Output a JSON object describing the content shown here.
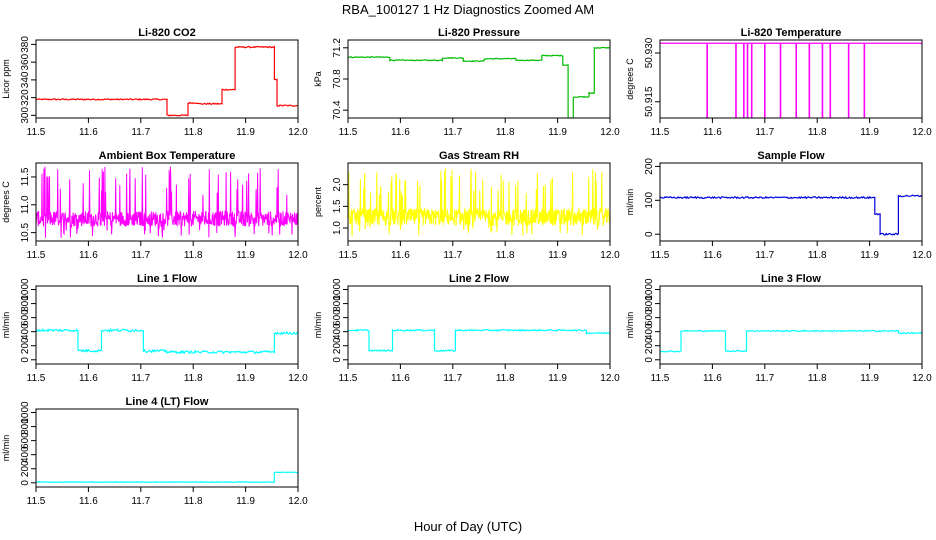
{
  "figure": {
    "main_title": "RBA_100127  1 Hz Diagnostics Zoomed AM",
    "xlabel": "Hour of Day (UTC)"
  },
  "chart_data": [
    {
      "type": "line",
      "title": "Li-820 CO2",
      "ylabel": "Licor ppm",
      "color": "#ff0000",
      "xlim": [
        11.5,
        12.0
      ],
      "xticks": [
        11.5,
        11.6,
        11.7,
        11.8,
        11.9,
        12.0
      ],
      "ylim": [
        297,
        385
      ],
      "yticks": [
        300,
        320,
        340,
        360,
        380
      ],
      "series": [
        {
          "x": [
            11.5,
            11.75,
            11.75,
            11.79,
            11.79,
            11.81,
            11.81,
            11.855,
            11.855,
            11.88,
            11.88,
            11.955,
            11.955,
            11.96,
            11.96,
            12.0
          ],
          "y": [
            318,
            318,
            300,
            300,
            314,
            314,
            313,
            313,
            329,
            329,
            377,
            377,
            340,
            340,
            311,
            311
          ],
          "noise": 0.7
        }
      ]
    },
    {
      "type": "line",
      "title": "Li-820 Pressure",
      "ylabel": "kPa",
      "color": "#00bb00",
      "xlim": [
        11.5,
        12.0
      ],
      "xticks": [
        11.5,
        11.6,
        11.7,
        11.8,
        11.9,
        12.0
      ],
      "ylim": [
        70.3,
        71.3
      ],
      "yticks": [
        70.4,
        70.8,
        71.2
      ],
      "series": [
        {
          "x": [
            11.5,
            11.58,
            11.58,
            11.68,
            11.68,
            11.72,
            11.72,
            11.76,
            11.76,
            11.82,
            11.82,
            11.87,
            11.87,
            11.91,
            11.91,
            11.92,
            11.92,
            11.93,
            11.93,
            11.96,
            11.96,
            11.97,
            11.97,
            12.0
          ],
          "y": [
            71.08,
            71.08,
            71.04,
            71.04,
            71.07,
            71.07,
            71.03,
            71.03,
            71.06,
            71.06,
            71.04,
            71.04,
            71.1,
            71.1,
            70.98,
            70.98,
            70.3,
            70.3,
            70.57,
            70.57,
            70.62,
            70.62,
            71.2,
            71.2
          ],
          "noise": 0.006
        }
      ]
    },
    {
      "type": "line",
      "title": "Li-820 Temperature",
      "ylabel": "degrees C",
      "color": "#ff00ff",
      "xlim": [
        11.5,
        12.0
      ],
      "xticks": [
        11.5,
        11.6,
        11.7,
        11.8,
        11.9,
        12.0
      ],
      "ylim": [
        50.91,
        50.934
      ],
      "yticks": [
        50.915,
        50.93
      ],
      "base": 50.933,
      "spikes": [
        11.59,
        11.645,
        11.66,
        11.667,
        11.675,
        11.7,
        11.73,
        11.76,
        11.785,
        11.81,
        11.825,
        11.86,
        11.89
      ],
      "spike_low": 50.91
    },
    {
      "type": "line",
      "title": "Ambient Box Temperature",
      "ylabel": "degrees C",
      "color": "#ff00ff",
      "xlim": [
        11.5,
        12.0
      ],
      "xticks": [
        11.5,
        11.6,
        11.7,
        11.8,
        11.9,
        12.0
      ],
      "ylim": [
        10.35,
        11.75
      ],
      "yticks": [
        10.5,
        11.0,
        11.5
      ],
      "noise_band": {
        "center": 10.75,
        "spread": 0.14,
        "spike_high": 11.7,
        "spike_low": 10.4
      }
    },
    {
      "type": "line",
      "title": "Gas Stream RH",
      "ylabel": "percent",
      "color": "#ffff00",
      "xlim": [
        11.5,
        12.0
      ],
      "xticks": [
        11.5,
        11.6,
        11.7,
        11.8,
        11.9,
        12.0
      ],
      "ylim": [
        0.7,
        2.5
      ],
      "yticks": [
        1.0,
        1.5,
        2.0
      ],
      "noise_band": {
        "center": 1.25,
        "spread": 0.2,
        "spike_high": 2.4,
        "spike_low": 0.8
      }
    },
    {
      "type": "line",
      "title": "Sample Flow",
      "ylabel": "ml/min",
      "color": "#0000dd",
      "xlim": [
        11.5,
        12.0
      ],
      "xticks": [
        11.5,
        11.6,
        11.7,
        11.8,
        11.9,
        12.0
      ],
      "ylim": [
        -20,
        210
      ],
      "yticks": [
        0,
        100,
        200
      ],
      "series": [
        {
          "x": [
            11.5,
            11.91,
            11.91,
            11.92,
            11.92,
            11.955,
            11.955,
            12.0
          ],
          "y": [
            108,
            108,
            60,
            60,
            0,
            0,
            113,
            113
          ],
          "noise": 2.5
        }
      ]
    },
    {
      "type": "line",
      "title": "Line 1 Flow",
      "ylabel": "ml/min",
      "color": "#00ffff",
      "xlim": [
        11.5,
        12.0
      ],
      "xticks": [
        11.5,
        11.6,
        11.7,
        11.8,
        11.9,
        12.0
      ],
      "ylim": [
        -60,
        1050
      ],
      "yticks": [
        0,
        200,
        400,
        600,
        800,
        1000
      ],
      "series": [
        {
          "x": [
            11.5,
            11.58,
            11.58,
            11.625,
            11.625,
            11.705,
            11.705,
            11.75,
            11.75,
            11.955,
            11.955,
            12.0
          ],
          "y": [
            420,
            420,
            130,
            130,
            420,
            420,
            125,
            125,
            110,
            110,
            380,
            380
          ],
          "noise": 18
        }
      ]
    },
    {
      "type": "line",
      "title": "Line 2 Flow",
      "ylabel": "ml/min",
      "color": "#00ffff",
      "xlim": [
        11.5,
        12.0
      ],
      "xticks": [
        11.5,
        11.6,
        11.7,
        11.8,
        11.9,
        12.0
      ],
      "ylim": [
        -60,
        1050
      ],
      "yticks": [
        0,
        200,
        400,
        600,
        800,
        1000
      ],
      "series": [
        {
          "x": [
            11.5,
            11.54,
            11.54,
            11.585,
            11.585,
            11.665,
            11.665,
            11.705,
            11.705,
            11.955,
            11.955,
            12.0
          ],
          "y": [
            420,
            420,
            130,
            130,
            420,
            420,
            130,
            130,
            420,
            420,
            380,
            380
          ],
          "noise": 10
        }
      ]
    },
    {
      "type": "line",
      "title": "Line 3 Flow",
      "ylabel": "ml/min",
      "color": "#00ffff",
      "xlim": [
        11.5,
        12.0
      ],
      "xticks": [
        11.5,
        11.6,
        11.7,
        11.8,
        11.9,
        12.0
      ],
      "ylim": [
        -60,
        1050
      ],
      "yticks": [
        0,
        200,
        400,
        600,
        800,
        1000
      ],
      "series": [
        {
          "x": [
            11.5,
            11.54,
            11.54,
            11.625,
            11.625,
            11.665,
            11.665,
            11.955,
            11.955,
            12.0
          ],
          "y": [
            120,
            120,
            410,
            410,
            125,
            125,
            410,
            410,
            380,
            380
          ],
          "noise": 8
        }
      ]
    },
    {
      "type": "line",
      "title": "Line 4 (LT) Flow",
      "ylabel": "ml/min",
      "color": "#00ffff",
      "xlim": [
        11.5,
        12.0
      ],
      "xticks": [
        11.5,
        11.6,
        11.7,
        11.8,
        11.9,
        12.0
      ],
      "ylim": [
        -60,
        1050
      ],
      "yticks": [
        0,
        200,
        400,
        600,
        800,
        1000
      ],
      "series": [
        {
          "x": [
            11.5,
            11.955,
            11.955,
            12.0
          ],
          "y": [
            10,
            10,
            150,
            150
          ],
          "noise": 4
        }
      ]
    }
  ]
}
